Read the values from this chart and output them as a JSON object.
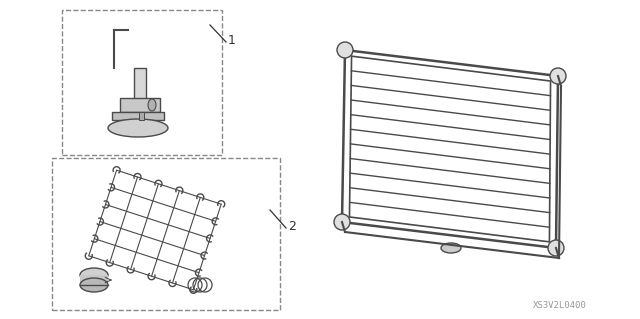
{
  "bg_color": "#ffffff",
  "line_color": "#4a4a4a",
  "dashed_color": "#888888",
  "text_color": "#333333",
  "part_number_text": "XS3V2L0400",
  "label1": "1",
  "label2": "2",
  "figsize": [
    6.4,
    3.19
  ],
  "dpi": 100
}
